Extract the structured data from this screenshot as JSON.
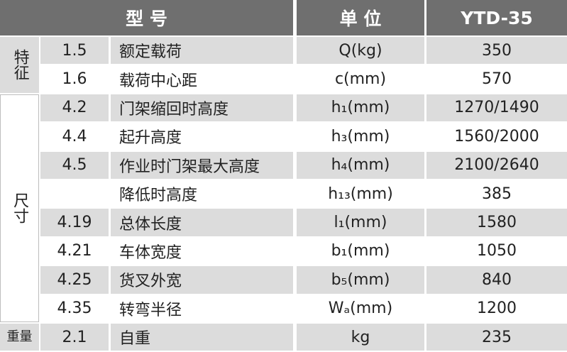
{
  "header": {
    "name": "型 号",
    "unit": "单 位",
    "model": "YTD-35"
  },
  "groups": [
    {
      "label": "特征",
      "start": 0,
      "span": 2
    },
    {
      "label": "尺寸",
      "start": 2,
      "span": 8
    },
    {
      "label": "重量",
      "start": 10,
      "span": 1
    }
  ],
  "rows": [
    {
      "code": "1.5",
      "name": "额定载荷",
      "unit": "Q(kg)",
      "value": "350"
    },
    {
      "code": "1.6",
      "name": "载荷中心距",
      "unit": "c(mm)",
      "value": "570"
    },
    {
      "code": "4.2",
      "name": "门架缩回时高度",
      "unit": "h₁(mm)",
      "value": "1270/1490"
    },
    {
      "code": "4.4",
      "name": "起升高度",
      "unit": "h₃(mm)",
      "value": "1560/2000"
    },
    {
      "code": "4.5",
      "name": "作业时门架最大高度",
      "unit": "h₄(mm)",
      "value": "2100/2640"
    },
    {
      "name": "降低时高度",
      "unit": "h₁₃(mm)",
      "value": "385"
    },
    {
      "code": "4.19",
      "name": "总体长度",
      "unit": "l₁(mm)",
      "value": "1580"
    },
    {
      "code": "4.21",
      "name": "车体宽度",
      "unit": "b₁(mm)",
      "value": "1050"
    },
    {
      "code": "4.25",
      "name": "货叉外宽",
      "unit": "b₅(mm)",
      "value": "840"
    },
    {
      "code": "4.35",
      "name": "转弯半径",
      "unit": "Wₐ(mm)",
      "value": "1200"
    },
    {
      "code": "2.1",
      "name": "自重",
      "unit": "kg",
      "value": "235"
    }
  ]
}
